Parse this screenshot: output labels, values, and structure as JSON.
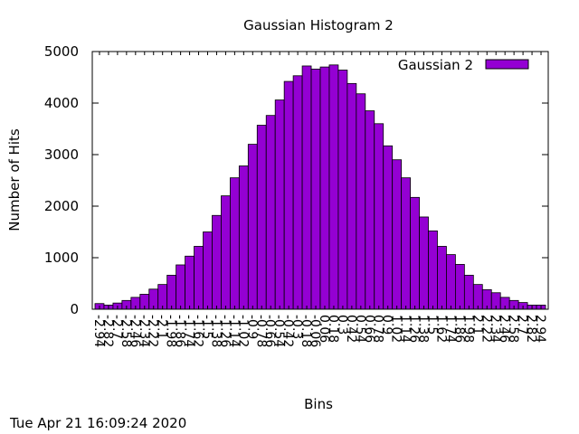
{
  "chart_data": {
    "type": "bar",
    "title": "Gaussian Histogram 2",
    "xlabel": "Bins",
    "ylabel": "Number of Hits",
    "ylim": [
      0,
      5000
    ],
    "yticks": [
      0,
      1000,
      2000,
      3000,
      4000,
      5000
    ],
    "legend_position": "top-right",
    "grid": false,
    "categories": [
      "-2.94",
      "-2.82",
      "-2.7",
      "-2.58",
      "-2.46",
      "-2.34",
      "-2.22",
      "-2.1",
      "-1.98",
      "-1.86",
      "-1.74",
      "-1.62",
      "-1.5",
      "-1.38",
      "-1.26",
      "-1.14",
      "-1.02",
      "-0.9",
      "-0.78",
      "-0.66",
      "-0.54",
      "-0.42",
      "-0.3",
      "-0.18",
      "-0.06",
      "0.06",
      "0.18",
      "0.3",
      "0.42",
      "0.54",
      "0.66",
      "0.78",
      "0.9",
      "1.02",
      "1.14",
      "1.26",
      "1.38",
      "1.5",
      "1.62",
      "1.74",
      "1.86",
      "1.98",
      "2.1",
      "2.22",
      "2.34",
      "2.46",
      "2.58",
      "2.7",
      "2.82",
      "2.94"
    ],
    "series": [
      {
        "name": "Gaussian 2",
        "color": "#9400d3",
        "values": [
          110,
          80,
          120,
          170,
          230,
          290,
          390,
          480,
          660,
          860,
          1030,
          1220,
          1500,
          1820,
          2200,
          2550,
          2780,
          3200,
          3570,
          3760,
          4060,
          4420,
          4530,
          4720,
          4660,
          4700,
          4740,
          4640,
          4380,
          4180,
          3850,
          3600,
          3170,
          2900,
          2550,
          2170,
          1790,
          1520,
          1220,
          1060,
          870,
          660,
          480,
          380,
          320,
          230,
          170,
          130,
          80,
          80
        ]
      }
    ],
    "xtick_labels": [
      "-2.94",
      "-2.82",
      "-2.7",
      "-2.58",
      "-2.46",
      "-2.34",
      "-2.22",
      "-2.1",
      "-1.98",
      "-1.86",
      "-1.74",
      "-1.62",
      "-1.5",
      "-1.38",
      "-1.26",
      "-1.14",
      "-1.02",
      "-0.9",
      "-0.78",
      "-0.66",
      "-0.54",
      "-0.42",
      "-0.3",
      "-0.18",
      "-0.06",
      "0.06",
      "0.18",
      "0.3",
      "0.42",
      "0.54",
      "0.66",
      "0.78",
      "0.9",
      "1.02",
      "1.14",
      "1.26",
      "1.38",
      "1.5",
      "1.62",
      "1.74",
      "1.86",
      "1.98",
      "2.1",
      "2.22",
      "2.34",
      "2.46",
      "2.58",
      "2.7",
      "2.82",
      "2.94"
    ]
  },
  "timestamp": "Tue Apr 21 16:09:24 2020"
}
